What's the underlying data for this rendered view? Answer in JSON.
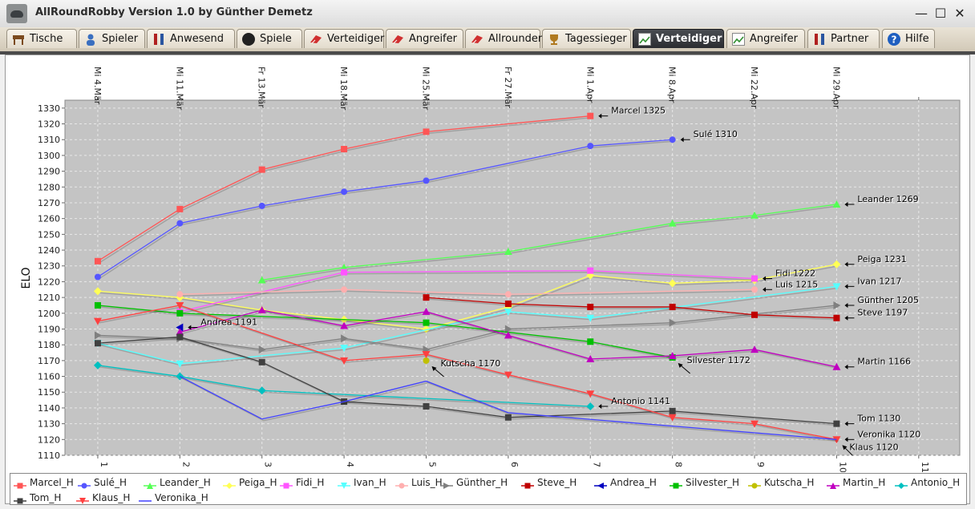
{
  "window": {
    "title": "AllRoundRobby Version 1.0 by Günther Demetz",
    "minimize": "—",
    "maximize": "☐",
    "close": "✕"
  },
  "tabs": [
    {
      "label": "Tische",
      "icon": "table-icon",
      "active": false
    },
    {
      "label": "Spieler",
      "icon": "player-icon",
      "active": false
    },
    {
      "label": "Anwesend",
      "icon": "present-icon",
      "active": false
    },
    {
      "label": "Spiele",
      "icon": "ball-icon",
      "active": false
    },
    {
      "label": "Verteidiger",
      "icon": "defender-icon",
      "active": false
    },
    {
      "label": "Angreifer",
      "icon": "attacker-icon",
      "active": false
    },
    {
      "label": "Allrounder",
      "icon": "allrounder-icon",
      "active": false
    },
    {
      "label": "Tagessieger",
      "icon": "trophy-icon",
      "active": false
    },
    {
      "label": "Verteidiger",
      "icon": "chart-icon",
      "active": true
    },
    {
      "label": "Angreifer",
      "icon": "chart-icon",
      "active": false
    },
    {
      "label": "Partner",
      "icon": "partner-icon",
      "active": false
    },
    {
      "label": "Hilfe",
      "icon": "help-icon",
      "active": false
    }
  ],
  "chart_data": {
    "type": "line",
    "title": "",
    "ylabel": "ELO",
    "xlabel": "",
    "x_ticks": [
      1,
      2,
      3,
      4,
      5,
      6,
      7,
      8,
      9,
      10,
      11
    ],
    "xlim": [
      0.6,
      11.5
    ],
    "ylim": [
      1110,
      1335
    ],
    "y_ticks": [
      1110,
      1120,
      1130,
      1140,
      1150,
      1160,
      1170,
      1180,
      1190,
      1200,
      1210,
      1220,
      1230,
      1240,
      1250,
      1260,
      1270,
      1280,
      1290,
      1300,
      1310,
      1320,
      1330
    ],
    "top_dates": [
      "Mi 4.Mär",
      "Mi 11.Mär",
      "Fr 13.Mär",
      "Mi 18.Mär",
      "Mi 25.Mär",
      "Fr 27.Mär",
      "Mi 1.Apr",
      "Mi 8.Apr",
      "Mi 22.Apr",
      "Mi 29.Apr"
    ],
    "grid": true,
    "legend_position": "bottom",
    "background": "#c4c4c4",
    "series": [
      {
        "name": "Marcel_H",
        "color": "#ff5555",
        "marker": "square",
        "points": [
          [
            1,
            1233
          ],
          [
            2,
            1266
          ],
          [
            3,
            1291
          ],
          [
            4,
            1304
          ],
          [
            5,
            1315
          ],
          [
            7,
            1325
          ]
        ]
      },
      {
        "name": "Sulé_H",
        "color": "#5555ff",
        "marker": "circle",
        "points": [
          [
            1,
            1223
          ],
          [
            2,
            1257
          ],
          [
            3,
            1268
          ],
          [
            4,
            1277
          ],
          [
            5,
            1284
          ],
          [
            7,
            1306
          ],
          [
            8,
            1310
          ]
        ]
      },
      {
        "name": "Leander_H",
        "color": "#55ff55",
        "marker": "triangle-up",
        "points": [
          [
            3,
            1221
          ],
          [
            4,
            1229
          ],
          [
            6,
            1239
          ],
          [
            8,
            1257
          ],
          [
            9,
            1262
          ],
          [
            10,
            1269
          ]
        ]
      },
      {
        "name": "Peiga_H",
        "color": "#ffff55",
        "marker": "diamond",
        "points": [
          [
            1,
            1214
          ],
          [
            2,
            1210
          ],
          [
            3,
            1202
          ],
          [
            4,
            1196
          ],
          [
            5,
            1190
          ],
          [
            6,
            1204
          ],
          [
            7,
            1224
          ],
          [
            8,
            1219
          ],
          [
            9,
            1221
          ],
          [
            10,
            1231
          ]
        ]
      },
      {
        "name": "Fidi_H",
        "color": "#ff55ff",
        "marker": "square",
        "points": [
          [
            2,
            1201
          ],
          [
            4,
            1226
          ],
          [
            7,
            1227
          ],
          [
            9,
            1222
          ]
        ]
      },
      {
        "name": "Ivan_H",
        "color": "#55ffff",
        "marker": "triangle-down",
        "points": [
          [
            1,
            1181
          ],
          [
            2,
            1168
          ],
          [
            4,
            1178
          ],
          [
            6,
            1201
          ],
          [
            7,
            1197
          ],
          [
            10,
            1217
          ]
        ]
      },
      {
        "name": "Luis_H",
        "color": "#ffafaf",
        "marker": "circle",
        "points": [
          [
            2,
            1212
          ],
          [
            4,
            1215
          ],
          [
            6,
            1212
          ],
          [
            9,
            1215
          ]
        ]
      },
      {
        "name": "Günther_H",
        "color": "#808080",
        "marker": "triangle-right",
        "points": [
          [
            1,
            1186
          ],
          [
            2,
            1184
          ],
          [
            3,
            1177
          ],
          [
            4,
            1184
          ],
          [
            5,
            1177
          ],
          [
            6,
            1190
          ],
          [
            8,
            1194
          ],
          [
            10,
            1205
          ]
        ]
      },
      {
        "name": "Steve_H",
        "color": "#c00000",
        "marker": "square",
        "points": [
          [
            5,
            1210
          ],
          [
            6,
            1206
          ],
          [
            7,
            1204
          ],
          [
            8,
            1204
          ],
          [
            9,
            1199
          ],
          [
            10,
            1197
          ]
        ]
      },
      {
        "name": "Andrea_H",
        "color": "#0000c0",
        "marker": "triangle-left",
        "points": [
          [
            2,
            1191
          ]
        ]
      },
      {
        "name": "Silvester_H",
        "color": "#00c000",
        "marker": "square",
        "points": [
          [
            1,
            1205
          ],
          [
            2,
            1200
          ],
          [
            5,
            1194
          ],
          [
            7,
            1182
          ],
          [
            8,
            1172
          ]
        ]
      },
      {
        "name": "Kutscha_H",
        "color": "#c0c000",
        "marker": "circle",
        "points": [
          [
            5,
            1170
          ]
        ]
      },
      {
        "name": "Martin_H",
        "color": "#c000c0",
        "marker": "triangle-up",
        "points": [
          [
            2,
            1188
          ],
          [
            3,
            1202
          ],
          [
            4,
            1192
          ],
          [
            5,
            1201
          ],
          [
            6,
            1186
          ],
          [
            7,
            1171
          ],
          [
            8,
            1173
          ],
          [
            9,
            1177
          ],
          [
            10,
            1166
          ]
        ]
      },
      {
        "name": "Antonio_H",
        "color": "#00c0c0",
        "marker": "diamond",
        "points": [
          [
            1,
            1167
          ],
          [
            2,
            1160
          ],
          [
            3,
            1151
          ],
          [
            7,
            1141
          ]
        ]
      },
      {
        "name": "Tom_H",
        "color": "#404040",
        "marker": "square",
        "points": [
          [
            1,
            1181
          ],
          [
            2,
            1185
          ],
          [
            3,
            1169
          ],
          [
            4,
            1144
          ],
          [
            5,
            1141
          ],
          [
            6,
            1134
          ],
          [
            8,
            1138
          ],
          [
            10,
            1130
          ]
        ]
      },
      {
        "name": "Klaus_H",
        "color": "#ff4040",
        "marker": "triangle-down",
        "points": [
          [
            1,
            1195
          ],
          [
            2,
            1205
          ],
          [
            4,
            1170
          ],
          [
            5,
            1174
          ],
          [
            6,
            1161
          ],
          [
            7,
            1149
          ],
          [
            8,
            1134
          ],
          [
            9,
            1130
          ],
          [
            10,
            1120
          ]
        ]
      },
      {
        "name": "Veronika_H",
        "color": "#4040ff",
        "marker": "line",
        "points": [
          [
            2,
            1160
          ],
          [
            3,
            1133
          ],
          [
            4,
            1144
          ],
          [
            5,
            1157
          ],
          [
            6,
            1137
          ],
          [
            10,
            1120
          ]
        ]
      }
    ],
    "annotations": [
      {
        "text": "Marcel 1325",
        "x": 7,
        "y": 1325,
        "dir": "left"
      },
      {
        "text": "Sulé 1310",
        "x": 8,
        "y": 1310,
        "dir": "left"
      },
      {
        "text": "Leander 1269",
        "x": 10,
        "y": 1269,
        "dir": "left"
      },
      {
        "text": "Peiga 1231",
        "x": 10,
        "y": 1231,
        "dir": "left"
      },
      {
        "text": "Fidi 1222",
        "x": 9,
        "y": 1222,
        "dir": "left"
      },
      {
        "text": "Luis 1215",
        "x": 9,
        "y": 1215,
        "dir": "left"
      },
      {
        "text": "Ivan 1217",
        "x": 10,
        "y": 1217,
        "dir": "left"
      },
      {
        "text": "Günther 1205",
        "x": 10,
        "y": 1205,
        "dir": "left"
      },
      {
        "text": "Steve 1197",
        "x": 10,
        "y": 1197,
        "dir": "left"
      },
      {
        "text": "Andrea 1191",
        "x": 2,
        "y": 1191,
        "dir": "left"
      },
      {
        "text": "Kutscha 1170",
        "x": 5,
        "y": 1170,
        "dir": "diag"
      },
      {
        "text": "Silvester 1172",
        "x": 8,
        "y": 1172,
        "dir": "diag"
      },
      {
        "text": "Martin 1166",
        "x": 10,
        "y": 1166,
        "dir": "left"
      },
      {
        "text": "Antonio 1141",
        "x": 7,
        "y": 1141,
        "dir": "left"
      },
      {
        "text": "Tom 1130",
        "x": 10,
        "y": 1130,
        "dir": "left"
      },
      {
        "text": "Veronika 1120",
        "x": 10,
        "y": 1120,
        "dir": "left"
      },
      {
        "text": "Klaus 1120",
        "x": 10,
        "y": 1120,
        "dir": "down"
      }
    ]
  }
}
